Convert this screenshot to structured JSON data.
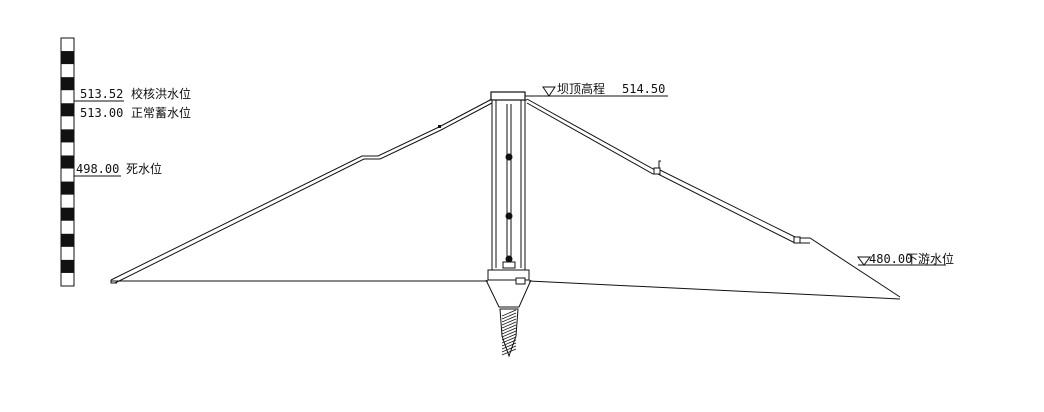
{
  "levels": {
    "check_flood": {
      "value": "513.52",
      "label": "校核洪水位"
    },
    "normal_storage": {
      "value": "513.00",
      "label": "正常蓄水位"
    },
    "dead": {
      "value": "498.00",
      "label": "死水位"
    }
  },
  "crest": {
    "symbol": "▽",
    "label": "坝顶高程",
    "value": "514.50"
  },
  "downstream": {
    "symbol": "▽",
    "value": "480.00",
    "label": "下游水位"
  },
  "scale_segments": 19
}
